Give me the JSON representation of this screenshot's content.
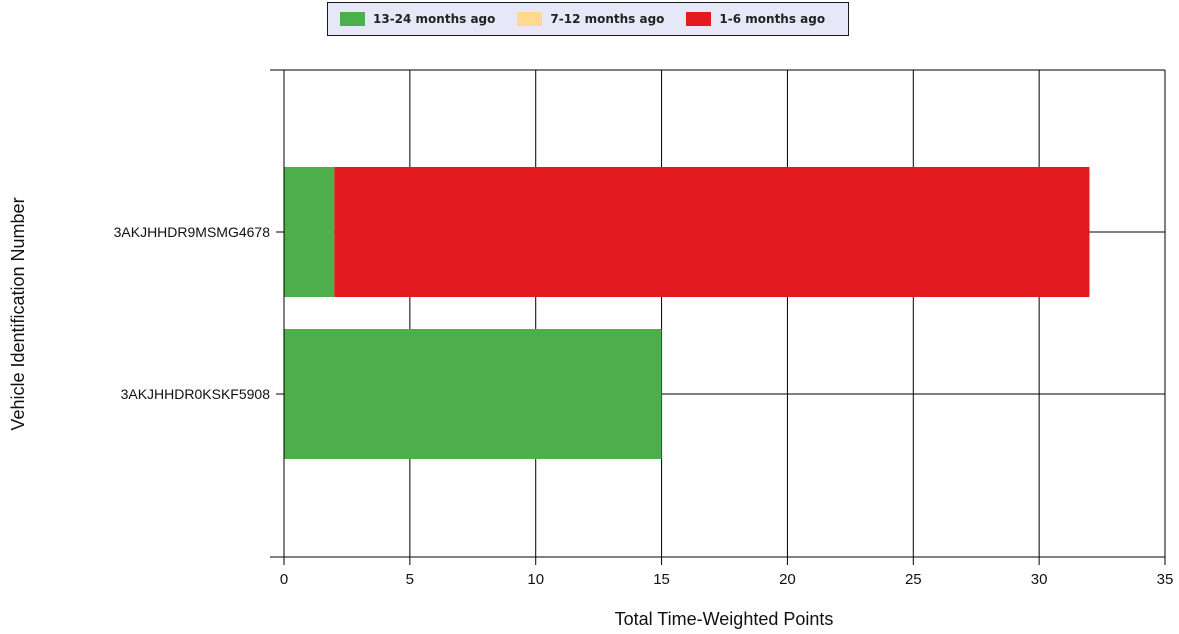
{
  "chart_data": {
    "type": "bar",
    "orientation": "horizontal",
    "stacked": true,
    "title": "",
    "xlabel": "Total Time-Weighted Points",
    "ylabel": "Vehicle Identification Number",
    "categories": [
      "3AKJHHDR9MSMG4678",
      "3AKJHHDR0KSKF5908"
    ],
    "series": [
      {
        "name": "13-24 months ago",
        "color": "#4caf4c",
        "values": [
          2,
          15
        ]
      },
      {
        "name": "7-12 months ago",
        "color": "#ffd98e",
        "values": [
          0,
          0
        ]
      },
      {
        "name": "1-6 months ago",
        "color": "#e31b1f",
        "values": [
          30,
          0
        ]
      }
    ],
    "xlim": [
      0,
      35
    ],
    "xticks": [
      0,
      5,
      10,
      15,
      20,
      25,
      30,
      35
    ],
    "grid": true,
    "legend_position": "top-center"
  }
}
